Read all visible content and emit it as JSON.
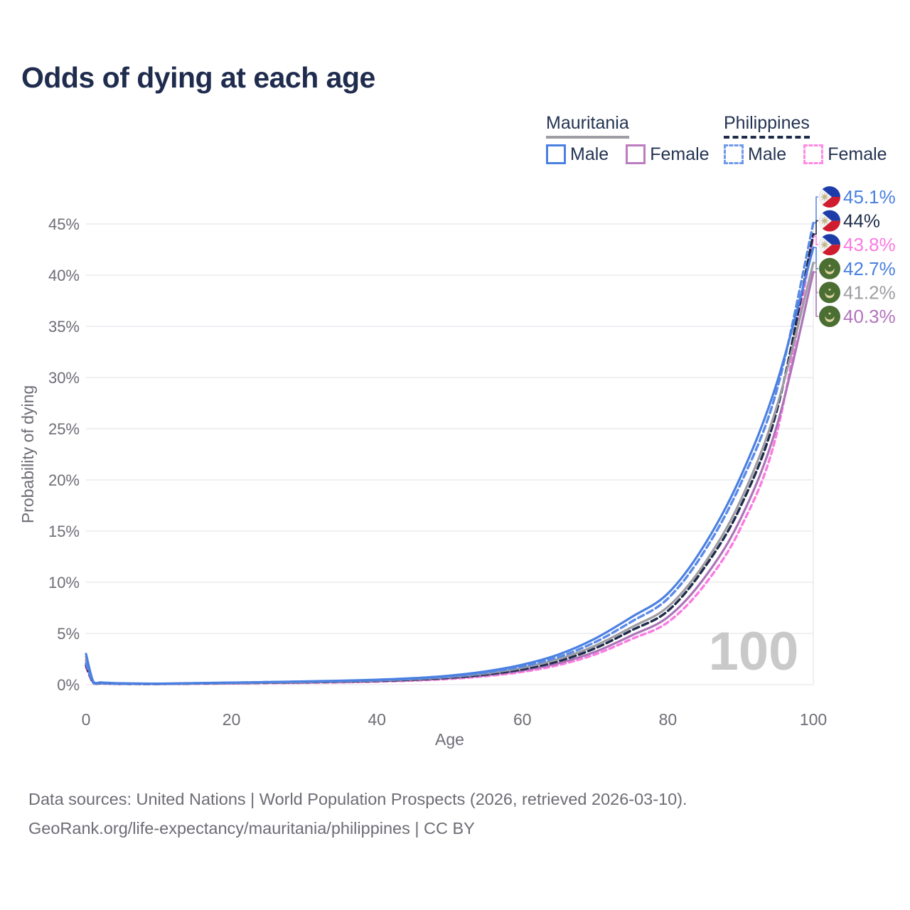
{
  "title": "Odds of dying at each age",
  "watermark_age": "100",
  "footer": {
    "line1": "Data sources: United Nations | World Population Prospects (2026, retrieved 2026-03-10).",
    "line2": "GeoRank.org/life-expectancy/mauritania/philippines | CC BY"
  },
  "colors": {
    "title_text": "#1f2c4e",
    "axis_text": "#6d6d76",
    "gridline": "#ececf0",
    "watermark": "#c9c9c9",
    "blue": "#4a80e2",
    "blue_dashed": "#5b8ae6",
    "purple": "#ab74b8",
    "pink": "#fb7ae1",
    "gray": "#9d9da3",
    "navy": "#1e2b49"
  },
  "legend": {
    "groups": [
      {
        "name": "Mauritania",
        "underline_style": "solid",
        "underline_color": "#9d9da3",
        "items": [
          {
            "label": "Male",
            "color": "#4a80e2",
            "dash": "solid"
          },
          {
            "label": "Female",
            "color": "#bb7cc0",
            "dash": "solid"
          }
        ]
      },
      {
        "name": "Philippines",
        "underline_style": "dashed",
        "underline_color": "#1e2b49",
        "items": [
          {
            "label": "Male",
            "color": "#6f99ea",
            "dash": "dashed"
          },
          {
            "label": "Female",
            "color": "#ff8ae2",
            "dash": "dashed"
          }
        ]
      }
    ]
  },
  "chart_data": {
    "type": "line",
    "title": "Odds of dying at each age",
    "xlabel": "Age",
    "ylabel": "Probability of dying",
    "xlim": [
      0,
      100
    ],
    "ylim": [
      0,
      45
    ],
    "x_ticks": [
      0,
      20,
      40,
      60,
      80,
      100
    ],
    "y_ticks": [
      0,
      5,
      10,
      15,
      20,
      25,
      30,
      35,
      40,
      45
    ],
    "y_tick_suffix": "%",
    "grid": "horizontal",
    "legend_position": "top-right",
    "x": [
      0,
      1,
      2,
      3,
      5,
      10,
      15,
      20,
      25,
      30,
      35,
      40,
      45,
      50,
      55,
      60,
      65,
      70,
      75,
      80,
      85,
      90,
      95,
      100
    ],
    "series": [
      {
        "name": "Philippines Male",
        "country": "Philippines",
        "sex": "Male",
        "color": "#5b8ae6",
        "dash": "dashed",
        "flag": "philippines",
        "end_label": "45.1%",
        "end_value": 45.1,
        "label_color": "#4a80e2",
        "values": [
          2.1,
          0.2,
          0.15,
          0.12,
          0.09,
          0.08,
          0.13,
          0.19,
          0.24,
          0.29,
          0.35,
          0.44,
          0.58,
          0.8,
          1.18,
          1.78,
          2.7,
          4.15,
          6.15,
          8.4,
          13.0,
          19.6,
          28.8,
          45.1
        ]
      },
      {
        "name": "Philippines",
        "country": "Philippines",
        "sex": "Both",
        "color": "#1e2b49",
        "dash": "dashed",
        "flag": "philippines",
        "end_label": "44%",
        "end_value": 44.0,
        "label_color": "#1e2b49",
        "values": [
          1.9,
          0.18,
          0.13,
          0.11,
          0.08,
          0.07,
          0.11,
          0.15,
          0.19,
          0.23,
          0.29,
          0.37,
          0.49,
          0.68,
          1.0,
          1.5,
          2.3,
          3.55,
          5.3,
          7.2,
          11.4,
          17.4,
          26.8,
          44.0
        ]
      },
      {
        "name": "Philippines Female",
        "country": "Philippines",
        "sex": "Female",
        "color": "#fb7ae1",
        "dash": "dashed",
        "flag": "philippines",
        "end_label": "43.8%",
        "end_value": 43.8,
        "label_color": "#fb7ae1",
        "values": [
          1.7,
          0.16,
          0.12,
          0.1,
          0.07,
          0.06,
          0.09,
          0.12,
          0.15,
          0.18,
          0.23,
          0.3,
          0.4,
          0.56,
          0.83,
          1.25,
          1.92,
          2.95,
          4.45,
          6.1,
          9.7,
          15.3,
          24.6,
          43.8
        ]
      },
      {
        "name": "Mauritania Male",
        "country": "Mauritania",
        "sex": "Male",
        "color": "#4a80e2",
        "dash": "solid",
        "flag": "mauritania",
        "end_label": "42.7%",
        "end_value": 42.7,
        "label_color": "#4a80e2",
        "values": [
          3.0,
          0.3,
          0.22,
          0.18,
          0.13,
          0.1,
          0.15,
          0.2,
          0.25,
          0.31,
          0.38,
          0.48,
          0.63,
          0.88,
          1.3,
          1.95,
          2.95,
          4.5,
          6.6,
          8.9,
          13.6,
          20.3,
          29.5,
          42.7
        ]
      },
      {
        "name": "Mauritania",
        "country": "Mauritania",
        "sex": "Both",
        "color": "#9d9da3",
        "dash": "solid",
        "flag": "mauritania",
        "end_label": "41.2%",
        "end_value": 41.2,
        "label_color": "#9d9da3",
        "values": [
          2.7,
          0.27,
          0.2,
          0.16,
          0.12,
          0.09,
          0.13,
          0.17,
          0.21,
          0.26,
          0.32,
          0.41,
          0.54,
          0.75,
          1.1,
          1.65,
          2.5,
          3.8,
          5.6,
          7.6,
          11.8,
          18.0,
          27.2,
          41.2
        ]
      },
      {
        "name": "Mauritania Female",
        "country": "Mauritania",
        "sex": "Female",
        "color": "#ab74b8",
        "dash": "solid",
        "flag": "mauritania",
        "end_label": "40.3%",
        "end_value": 40.3,
        "label_color": "#b273bd",
        "values": [
          2.4,
          0.24,
          0.18,
          0.14,
          0.1,
          0.08,
          0.11,
          0.14,
          0.18,
          0.22,
          0.27,
          0.34,
          0.45,
          0.63,
          0.92,
          1.38,
          2.1,
          3.2,
          4.8,
          6.6,
          10.4,
          16.2,
          25.3,
          40.3
        ]
      }
    ],
    "flag_colors": {
      "philippines_blue": "#1d3ca8",
      "philippines_red": "#cf1c2e",
      "philippines_white": "#f2f2f2",
      "philippines_sun": "#c2b789",
      "mauritania_green": "#4b6e33",
      "mauritania_gold": "#ded3a0"
    }
  }
}
